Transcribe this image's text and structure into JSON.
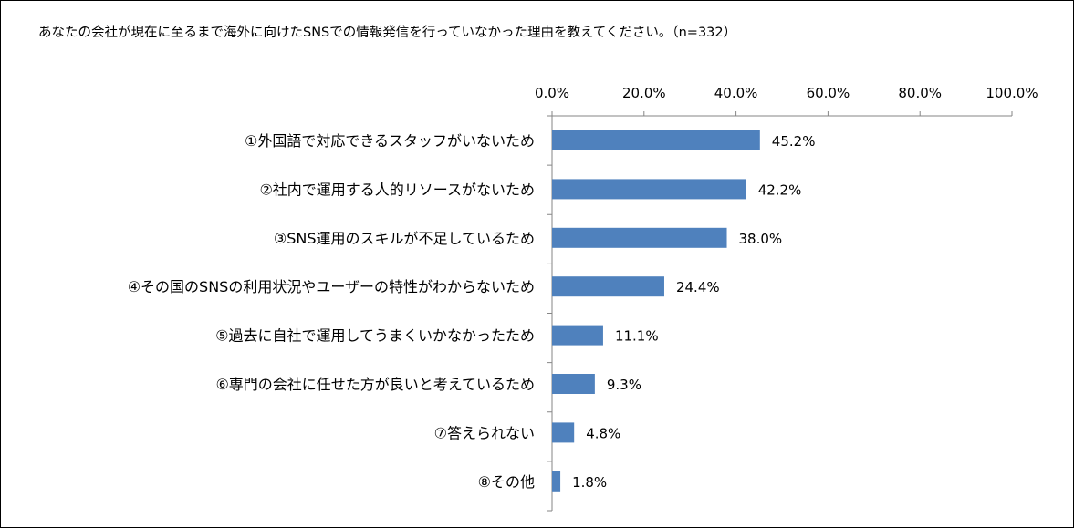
{
  "chart_data": {
    "type": "bar",
    "orientation": "horizontal",
    "title": "あなたの会社が現在に至るまで海外に向けたSNSでの情報発信を行っていなかった理由を教えてください。（n=332）",
    "categories": [
      "①外国語で対応できるスタッフがいないため",
      "②社内で運用する人的リソースがないため",
      "③SNS運用のスキルが不足しているため",
      "④その国のSNSの利用状況やユーザーの特性がわからないため",
      "⑤過去に自社で運用してうまくいかなかったため",
      "⑥専門の会社に任せた方が良いと考えているため",
      "⑦答えられない",
      "⑧その他"
    ],
    "values": [
      45.2,
      42.2,
      38.0,
      24.4,
      11.1,
      9.3,
      4.8,
      1.8
    ],
    "value_labels": [
      "45.2%",
      "42.2%",
      "38.0%",
      "24.4%",
      "11.1%",
      "9.3%",
      "4.8%",
      "1.8%"
    ],
    "xlim": [
      0,
      100
    ],
    "x_ticks": [
      "0.0%",
      "20.0%",
      "40.0%",
      "60.0%",
      "80.0%",
      "100.0%"
    ],
    "x_axis_position": "top",
    "grid": false,
    "bar_color": "#4f81bd"
  }
}
